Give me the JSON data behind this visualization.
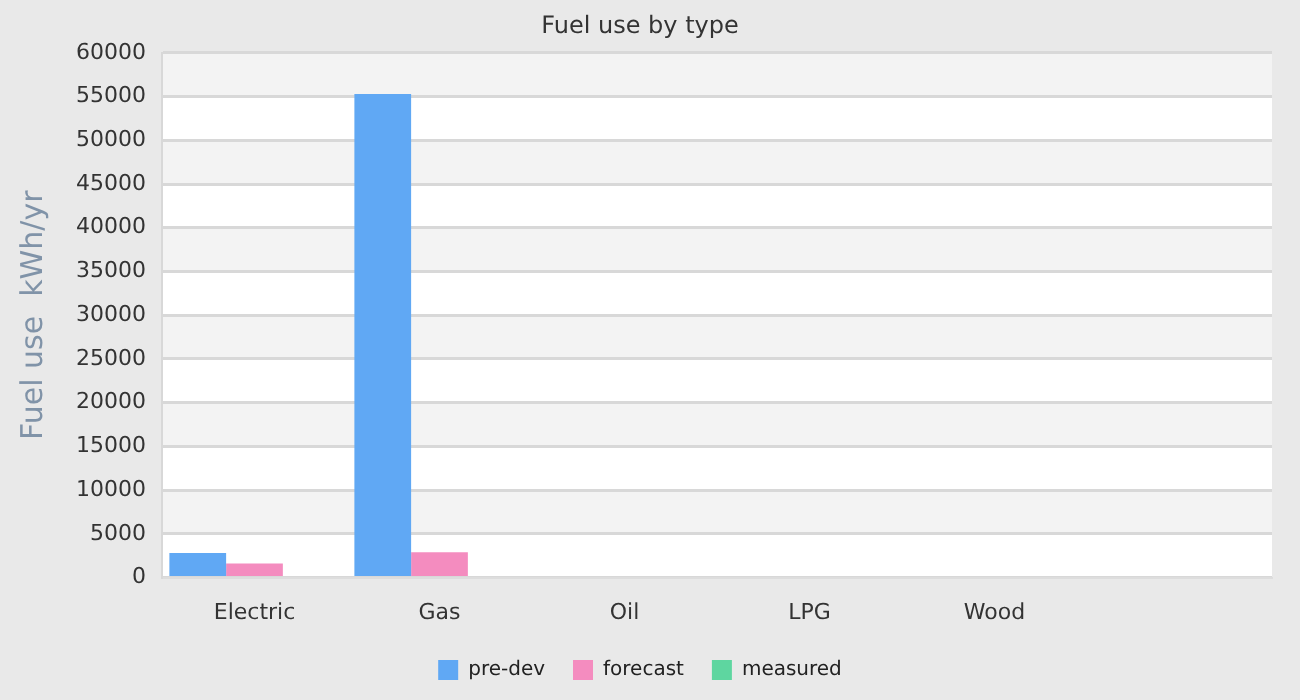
{
  "chart_data": {
    "type": "bar",
    "title": "Fuel use by type",
    "ylabel": "Fuel use  kWh/yr",
    "categories": [
      "Electric",
      "Gas",
      "Oil",
      "LPG",
      "Wood",
      null
    ],
    "series": [
      {
        "name": "pre-dev",
        "color": "#60a8f4",
        "values": [
          2800,
          55300,
          null,
          null,
          null,
          null
        ]
      },
      {
        "name": "forecast",
        "color": "#f48cbf",
        "values": [
          1600,
          2900,
          null,
          null,
          null,
          null
        ]
      },
      {
        "name": "measured",
        "color": "#5ed6a0",
        "values": [
          null,
          null,
          null,
          null,
          null,
          null
        ]
      }
    ],
    "ylim": [
      0,
      60000
    ],
    "yticks": [
      0,
      5000,
      10000,
      15000,
      20000,
      25000,
      30000,
      35000,
      40000,
      45000,
      50000,
      55000,
      60000
    ],
    "grid": "y",
    "legend": "bottom"
  }
}
